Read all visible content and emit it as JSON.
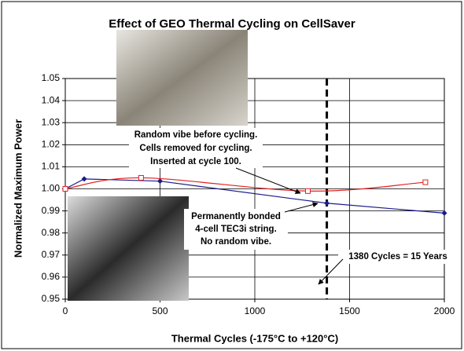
{
  "chart_data": {
    "type": "line",
    "title": "Effect of GEO Thermal Cycling on CellSaver",
    "x_label": "Thermal Cycles (-175°C to +120°C)",
    "y_label": "Normalized Maximum Power",
    "xlim": [
      0,
      2000
    ],
    "xticks": [
      0,
      500,
      1000,
      1500,
      2000
    ],
    "ylim": [
      0.95,
      1.05
    ],
    "yticks": [
      0.95,
      0.96,
      0.97,
      0.98,
      0.99,
      {
        "value": 1,
        "label": "1.00"
      },
      1.01,
      1.02,
      1.03,
      1.04,
      1.05
    ],
    "grid": true,
    "series": [
      {
        "color": "#1a1a8c",
        "marker": "diamond",
        "smooth": false,
        "x": [
          0,
          100,
          500,
          1380,
          2000
        ],
        "values": [
          1.0,
          1.0045,
          1.0035,
          0.9935,
          0.989
        ]
      },
      {
        "color": "#e02020",
        "marker": "square",
        "smooth": true,
        "x": [
          0,
          400,
          1280,
          1900
        ],
        "values": [
          1.0,
          1.005,
          0.999,
          1.003
        ]
      }
    ],
    "vline": 1380,
    "annotations": [
      {
        "lines": [
          "Random vibe before cycling.",
          "Cells removed for cycling.",
          "Inserted at cycle 100."
        ]
      },
      {
        "lines": [
          "Permanently bonded",
          "4-cell TEC3i string.",
          "No random vibe."
        ]
      },
      {
        "lines": [
          "1380 Cycles = 15 Years"
        ]
      }
    ]
  }
}
